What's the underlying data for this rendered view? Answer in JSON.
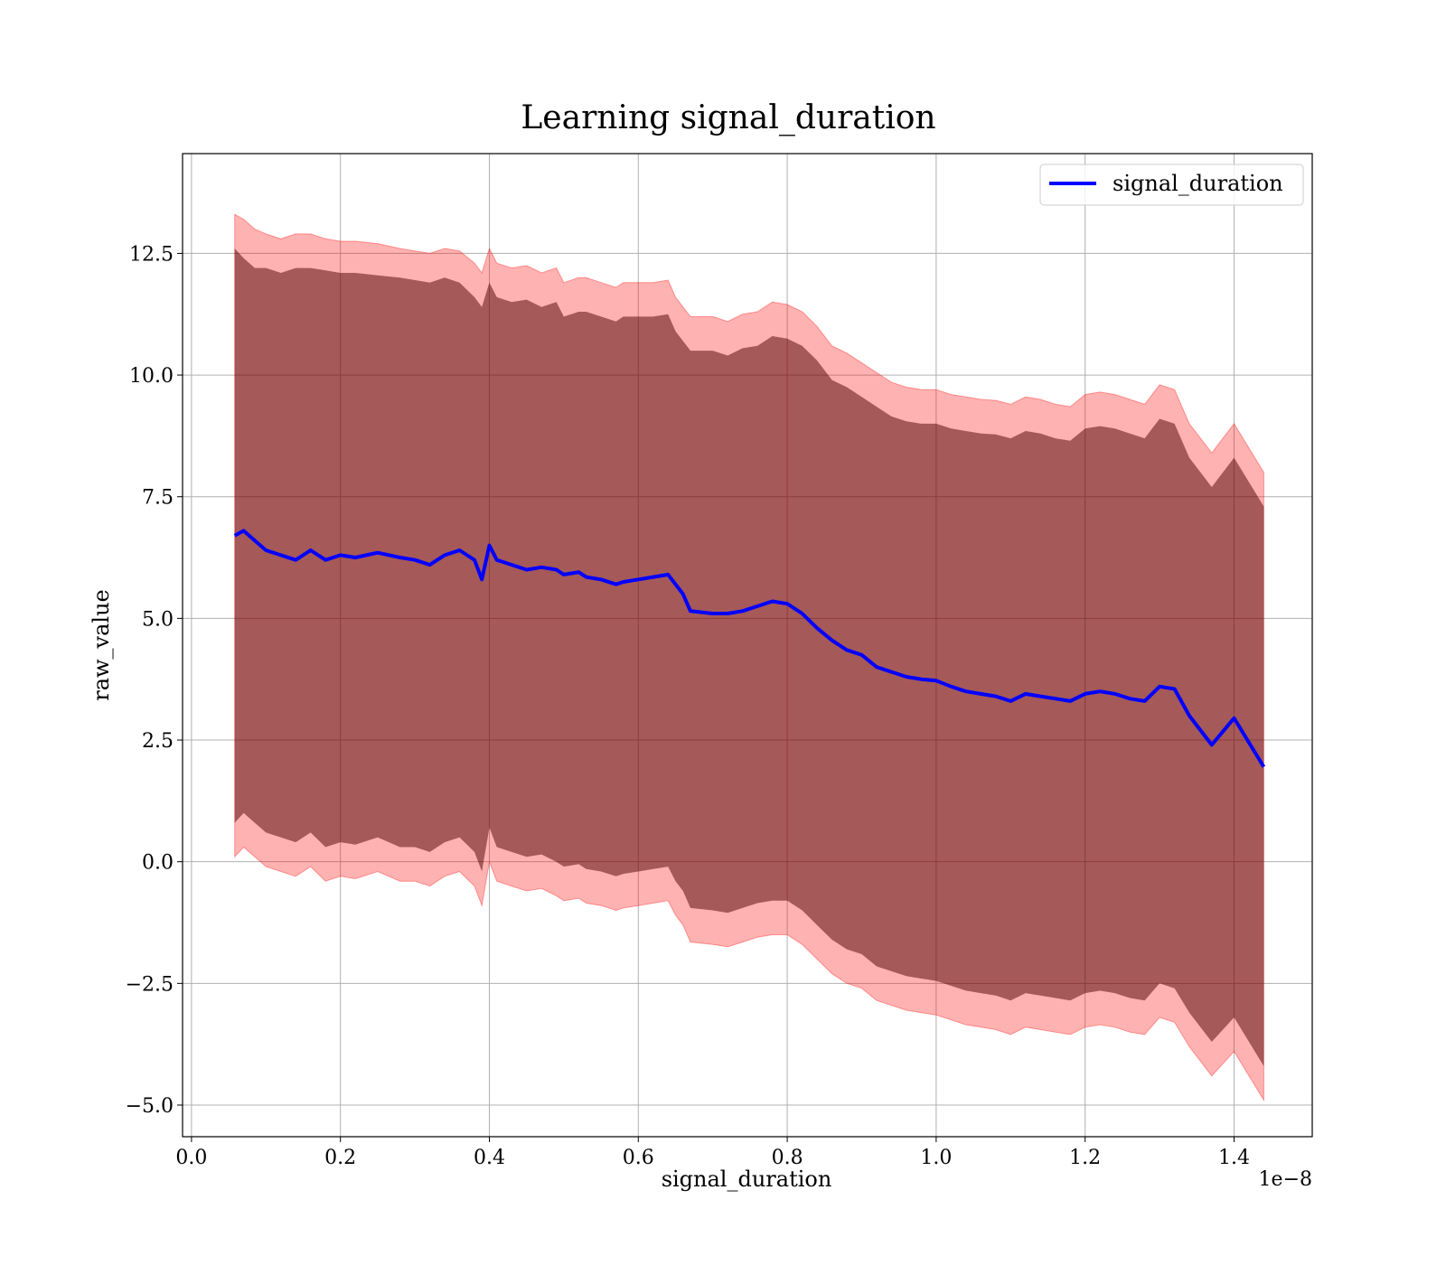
{
  "chart_data": {
    "type": "line",
    "title": "Learning signal_duration",
    "xlabel": "signal_duration",
    "ylabel": "raw_value",
    "x_offset_label": "1e−8",
    "xlim": [
      -0.012,
      1.505
    ],
    "ylim": [
      -5.65,
      14.55
    ],
    "x_ticks": [
      0.0,
      0.2,
      0.4,
      0.6,
      0.8,
      1.0,
      1.2,
      1.4
    ],
    "x_tick_labels": [
      "0.0",
      "0.2",
      "0.4",
      "0.6",
      "0.8",
      "1.0",
      "1.2",
      "1.4"
    ],
    "y_ticks": [
      -5.0,
      -2.5,
      0.0,
      2.5,
      5.0,
      7.5,
      10.0,
      12.5
    ],
    "y_tick_labels": [
      "−5.0",
      "−2.5",
      "0.0",
      "2.5",
      "5.0",
      "7.5",
      "10.0",
      "12.5"
    ],
    "grid": true,
    "legend_position": "top-right",
    "colors": {
      "line": "#0000ff",
      "outer_band": "#ff0000",
      "inner_band": "#4b0000"
    },
    "series": [
      {
        "name": "signal_duration",
        "x": [
          0.058,
          0.07,
          0.085,
          0.1,
          0.12,
          0.14,
          0.16,
          0.18,
          0.2,
          0.22,
          0.25,
          0.28,
          0.3,
          0.32,
          0.34,
          0.36,
          0.38,
          0.39,
          0.4,
          0.41,
          0.43,
          0.45,
          0.47,
          0.49,
          0.5,
          0.52,
          0.53,
          0.55,
          0.57,
          0.58,
          0.6,
          0.62,
          0.64,
          0.65,
          0.66,
          0.67,
          0.7,
          0.72,
          0.74,
          0.76,
          0.78,
          0.8,
          0.82,
          0.84,
          0.86,
          0.88,
          0.9,
          0.92,
          0.94,
          0.96,
          0.98,
          1.0,
          1.02,
          1.04,
          1.06,
          1.08,
          1.1,
          1.12,
          1.14,
          1.16,
          1.18,
          1.2,
          1.22,
          1.24,
          1.26,
          1.28,
          1.3,
          1.32,
          1.34,
          1.37,
          1.4,
          1.44
        ],
        "y": [
          6.7,
          6.8,
          6.6,
          6.4,
          6.3,
          6.2,
          6.4,
          6.2,
          6.3,
          6.25,
          6.35,
          6.25,
          6.2,
          6.1,
          6.3,
          6.4,
          6.2,
          5.8,
          6.5,
          6.2,
          6.1,
          6.0,
          6.05,
          6.0,
          5.9,
          5.95,
          5.85,
          5.8,
          5.7,
          5.75,
          5.8,
          5.85,
          5.9,
          5.7,
          5.5,
          5.15,
          5.1,
          5.1,
          5.15,
          5.25,
          5.35,
          5.3,
          5.1,
          4.8,
          4.55,
          4.35,
          4.25,
          4.0,
          3.9,
          3.8,
          3.75,
          3.72,
          3.6,
          3.5,
          3.45,
          3.4,
          3.3,
          3.45,
          3.4,
          3.35,
          3.3,
          3.45,
          3.5,
          3.45,
          3.35,
          3.3,
          3.6,
          3.55,
          3.0,
          2.4,
          2.95,
          1.95
        ],
        "inner_upper": [
          12.6,
          12.4,
          12.2,
          12.2,
          12.1,
          12.2,
          12.2,
          12.15,
          12.1,
          12.1,
          12.05,
          12.0,
          11.95,
          11.9,
          12.0,
          11.9,
          11.6,
          11.4,
          11.9,
          11.6,
          11.5,
          11.55,
          11.4,
          11.5,
          11.2,
          11.3,
          11.3,
          11.2,
          11.1,
          11.2,
          11.2,
          11.2,
          11.25,
          10.9,
          10.7,
          10.5,
          10.5,
          10.4,
          10.55,
          10.6,
          10.8,
          10.75,
          10.6,
          10.3,
          9.9,
          9.75,
          9.55,
          9.35,
          9.15,
          9.05,
          9.0,
          9.0,
          8.9,
          8.85,
          8.8,
          8.78,
          8.7,
          8.85,
          8.8,
          8.7,
          8.65,
          8.9,
          8.95,
          8.9,
          8.8,
          8.7,
          9.1,
          9.0,
          8.3,
          7.7,
          8.3,
          7.3
        ],
        "inner_lower": [
          0.8,
          1.0,
          0.8,
          0.6,
          0.5,
          0.4,
          0.6,
          0.3,
          0.4,
          0.35,
          0.5,
          0.3,
          0.3,
          0.2,
          0.4,
          0.5,
          0.2,
          -0.2,
          0.7,
          0.3,
          0.2,
          0.1,
          0.15,
          0.0,
          -0.1,
          -0.05,
          -0.15,
          -0.2,
          -0.3,
          -0.25,
          -0.2,
          -0.15,
          -0.1,
          -0.4,
          -0.6,
          -0.95,
          -1.0,
          -1.05,
          -0.95,
          -0.85,
          -0.8,
          -0.8,
          -1.0,
          -1.3,
          -1.6,
          -1.8,
          -1.9,
          -2.15,
          -2.25,
          -2.35,
          -2.4,
          -2.45,
          -2.55,
          -2.65,
          -2.7,
          -2.75,
          -2.85,
          -2.7,
          -2.75,
          -2.8,
          -2.85,
          -2.7,
          -2.65,
          -2.7,
          -2.8,
          -2.85,
          -2.5,
          -2.6,
          -3.1,
          -3.7,
          -3.2,
          -4.2
        ],
        "outer_upper": [
          13.3,
          13.2,
          13.0,
          12.9,
          12.8,
          12.9,
          12.9,
          12.8,
          12.75,
          12.75,
          12.7,
          12.6,
          12.55,
          12.5,
          12.6,
          12.55,
          12.3,
          12.1,
          12.6,
          12.3,
          12.2,
          12.25,
          12.1,
          12.2,
          11.9,
          12.0,
          12.0,
          11.9,
          11.8,
          11.9,
          11.9,
          11.9,
          11.95,
          11.6,
          11.4,
          11.2,
          11.2,
          11.1,
          11.25,
          11.3,
          11.5,
          11.45,
          11.3,
          11.0,
          10.6,
          10.45,
          10.25,
          10.05,
          9.85,
          9.75,
          9.7,
          9.7,
          9.6,
          9.55,
          9.5,
          9.48,
          9.4,
          9.55,
          9.5,
          9.4,
          9.35,
          9.6,
          9.65,
          9.6,
          9.5,
          9.4,
          9.8,
          9.7,
          9.0,
          8.4,
          9.0,
          8.0
        ],
        "outer_lower": [
          0.1,
          0.3,
          0.1,
          -0.1,
          -0.2,
          -0.3,
          -0.1,
          -0.4,
          -0.3,
          -0.35,
          -0.2,
          -0.4,
          -0.4,
          -0.5,
          -0.3,
          -0.2,
          -0.5,
          -0.9,
          0.0,
          -0.4,
          -0.5,
          -0.6,
          -0.55,
          -0.7,
          -0.8,
          -0.75,
          -0.85,
          -0.9,
          -1.0,
          -0.95,
          -0.9,
          -0.85,
          -0.8,
          -1.1,
          -1.3,
          -1.65,
          -1.7,
          -1.75,
          -1.65,
          -1.55,
          -1.5,
          -1.5,
          -1.7,
          -2.0,
          -2.3,
          -2.5,
          -2.6,
          -2.85,
          -2.95,
          -3.05,
          -3.1,
          -3.15,
          -3.25,
          -3.35,
          -3.4,
          -3.45,
          -3.55,
          -3.4,
          -3.45,
          -3.5,
          -3.55,
          -3.4,
          -3.35,
          -3.4,
          -3.5,
          -3.55,
          -3.2,
          -3.3,
          -3.8,
          -4.4,
          -3.9,
          -4.9
        ]
      }
    ]
  }
}
